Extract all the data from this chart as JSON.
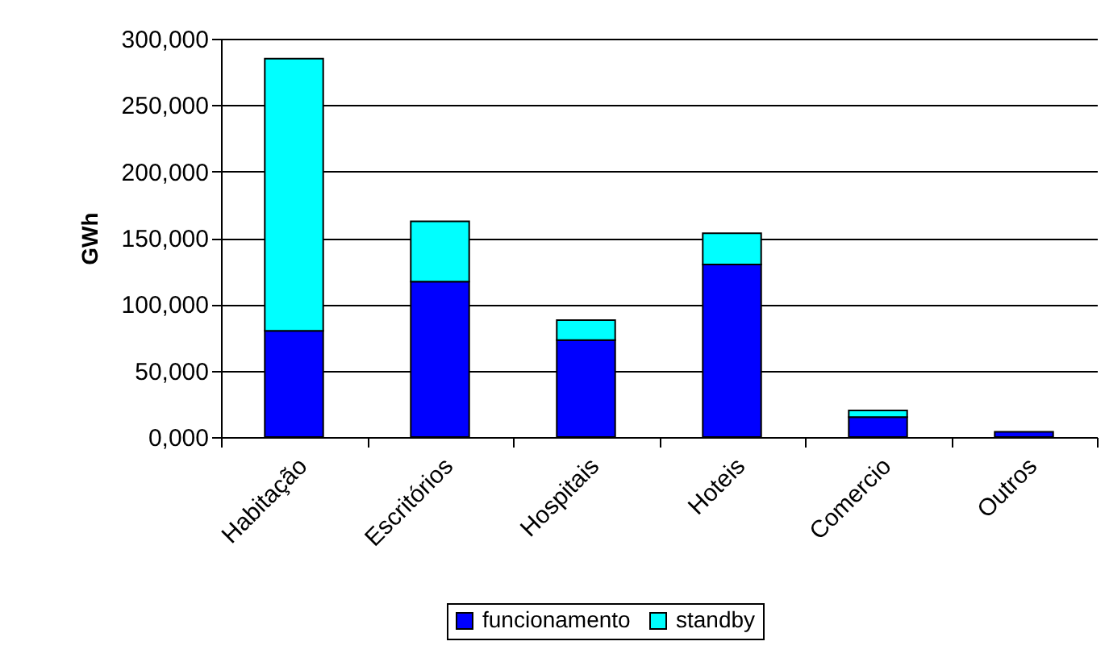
{
  "chart_data": {
    "type": "bar",
    "ylabel": "GWh",
    "stacked": true,
    "categories": [
      "Habitação",
      "Escritórios",
      "Hospitais",
      "Hoteis",
      "Comercio",
      "Outros"
    ],
    "series": [
      {
        "name": "funcionamento",
        "color": "#0000ff",
        "values": [
          80000,
          117000,
          73000,
          130000,
          15000,
          4000
        ]
      },
      {
        "name": "standby",
        "color": "#00ffff",
        "values": [
          205000,
          45500,
          15000,
          23500,
          5000,
          null
        ]
      }
    ],
    "ylim": [
      0,
      300000
    ],
    "yticks": [
      {
        "value": 0,
        "label": "0,000"
      },
      {
        "value": 50000,
        "label": "50,000"
      },
      {
        "value": 100000,
        "label": "100,000"
      },
      {
        "value": 150000,
        "label": "150,000"
      },
      {
        "value": 200000,
        "label": "200,000"
      },
      {
        "value": 250000,
        "label": "250,000"
      },
      {
        "value": 300000,
        "label": "300,000"
      }
    ],
    "grid": "y",
    "legend": "bottom"
  }
}
